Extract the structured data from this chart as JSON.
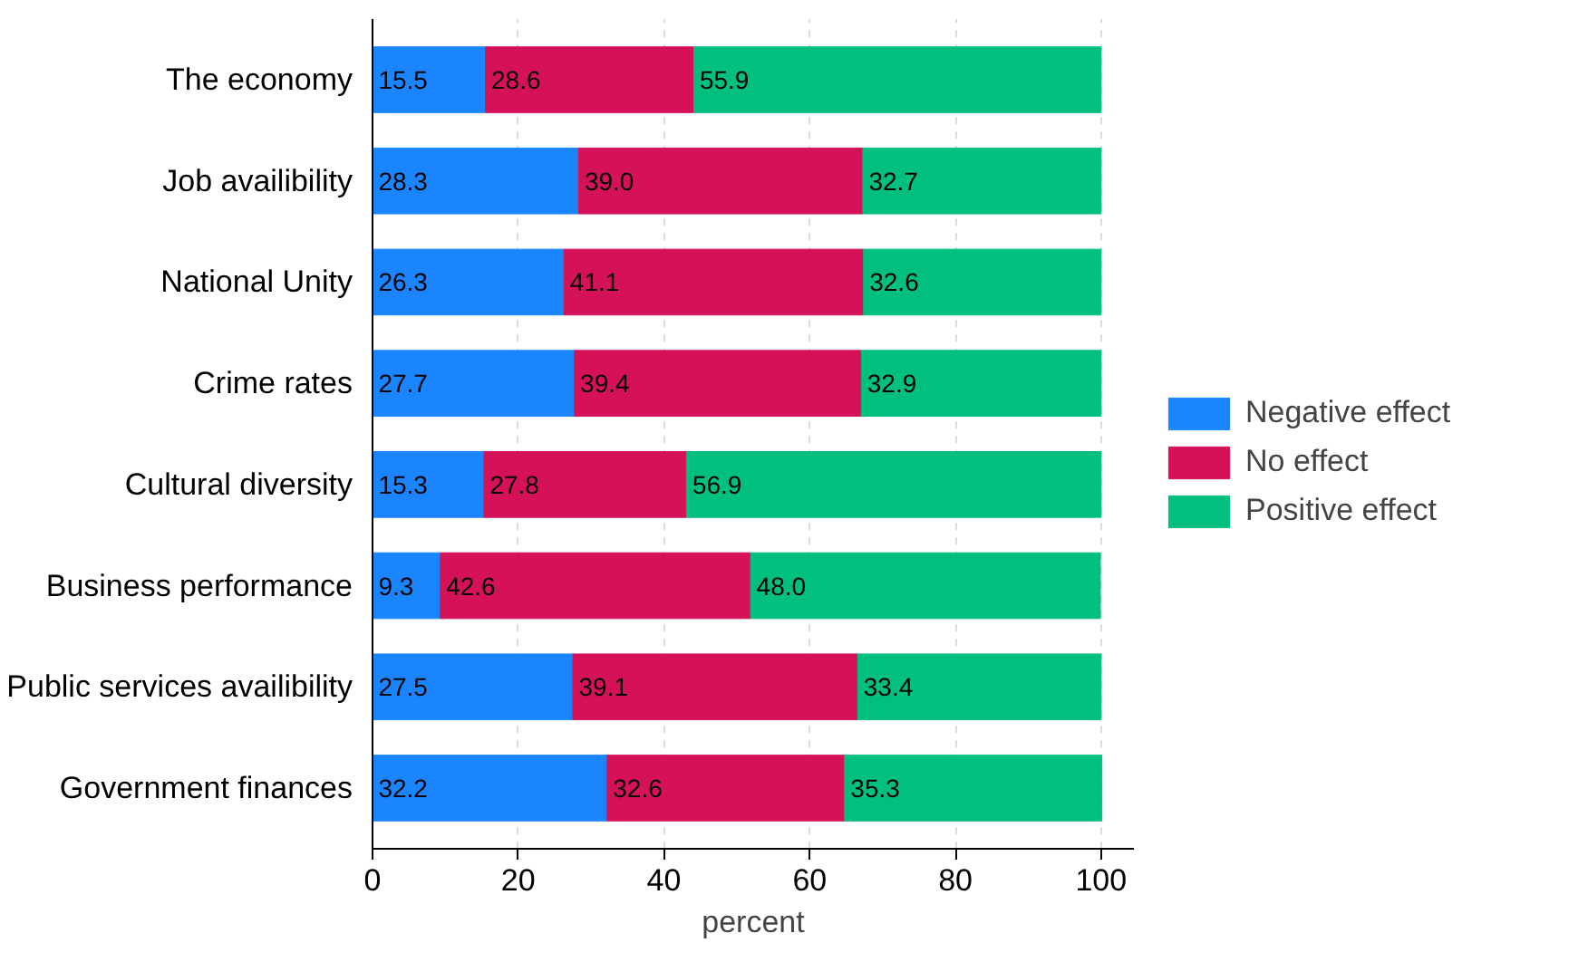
{
  "chart_data": {
    "type": "bar",
    "orientation": "horizontal",
    "stacked": true,
    "xlabel": "percent",
    "categories": [
      "The economy",
      "Job availibility",
      "National Unity",
      "Crime rates",
      "Cultural diversity",
      "Business performance",
      "Public services availibility",
      "Government finances"
    ],
    "series": [
      {
        "name": "Negative effect",
        "color": "#1a85ff",
        "values": [
          15.5,
          28.3,
          26.3,
          27.7,
          15.3,
          9.3,
          27.5,
          32.2
        ],
        "value_labels": [
          "15.5",
          "28.3",
          "26.3",
          "27.7",
          "15.3",
          "9.3",
          "27.5",
          "32.2"
        ]
      },
      {
        "name": "No effect",
        "color": "#d41159",
        "values": [
          28.6,
          39.0,
          41.1,
          39.4,
          27.8,
          42.6,
          39.1,
          32.6
        ],
        "value_labels": [
          "28.6",
          "39.0",
          "41.1",
          "39.4",
          "27.8",
          "42.6",
          "39.1",
          "32.6"
        ]
      },
      {
        "name": "Positive effect",
        "color": "#00bf7f",
        "values": [
          55.9,
          32.7,
          32.6,
          32.9,
          56.9,
          48.0,
          33.4,
          35.3
        ],
        "value_labels": [
          "55.9",
          "32.7",
          "32.6",
          "32.9",
          "56.9",
          "48.0",
          "33.4",
          "35.3"
        ]
      }
    ],
    "xlim": [
      0,
      104.5
    ],
    "xticks": [
      0,
      20,
      40,
      60,
      80,
      100
    ],
    "grid": "x",
    "legend": "right"
  }
}
